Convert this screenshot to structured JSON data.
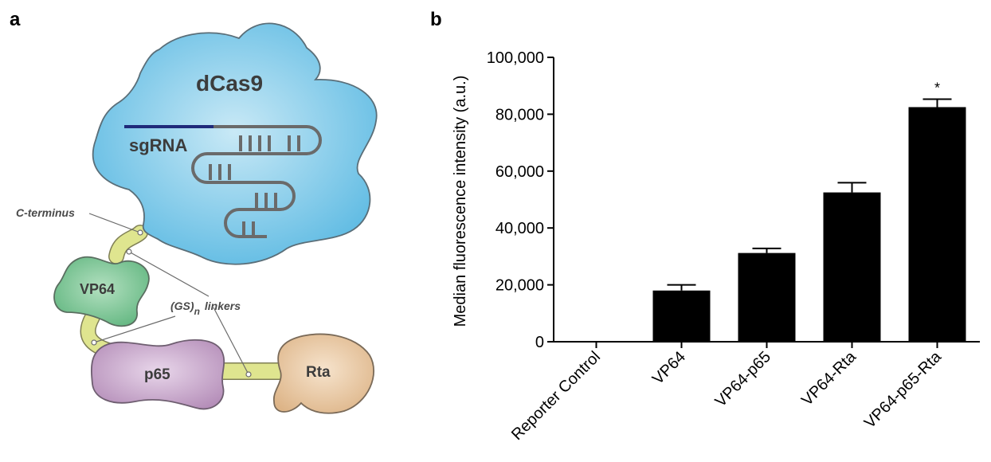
{
  "panels": {
    "a_label": "a",
    "b_label": "b"
  },
  "diagram": {
    "dcas9_label": "dCas9",
    "sgrna_label": "sgRNA",
    "c_terminus_label": "C-terminus",
    "linkers_prefix": "(GS)",
    "linkers_sub": "n",
    "linkers_suffix": "linkers",
    "vp64_label": "VP64",
    "p65_label": "p65",
    "rta_label": "Rta",
    "colors": {
      "dcas9": "#6ec3e6",
      "vp64": "#6fbf8a",
      "p65": "#c3a0c6",
      "rta": "#e8c49a",
      "linker": "#dfe58f",
      "sgrna_guide": "#1f2a7a",
      "sgrna_body": "#6a6a6a"
    }
  },
  "chart_data": {
    "type": "bar",
    "categories": [
      "Reporter Control",
      "VP64",
      "VP64-p65",
      "VP64-Rta",
      "VP64-p65-Rta"
    ],
    "values": [
      0,
      18000,
      31200,
      52500,
      82500
    ],
    "errors": [
      0,
      2000,
      1600,
      3400,
      2800
    ],
    "annotations": [
      "",
      "",
      "",
      "",
      "*"
    ],
    "ylabel": "Median fluorescence intensity (a.u.)",
    "ylim": [
      0,
      100000
    ],
    "yticks": [
      0,
      20000,
      40000,
      60000,
      80000,
      100000
    ],
    "ytick_labels": [
      "0",
      "20,000",
      "40,000",
      "60,000",
      "80,000",
      "100,000"
    ],
    "grid": false,
    "bar_color": "#000000"
  }
}
